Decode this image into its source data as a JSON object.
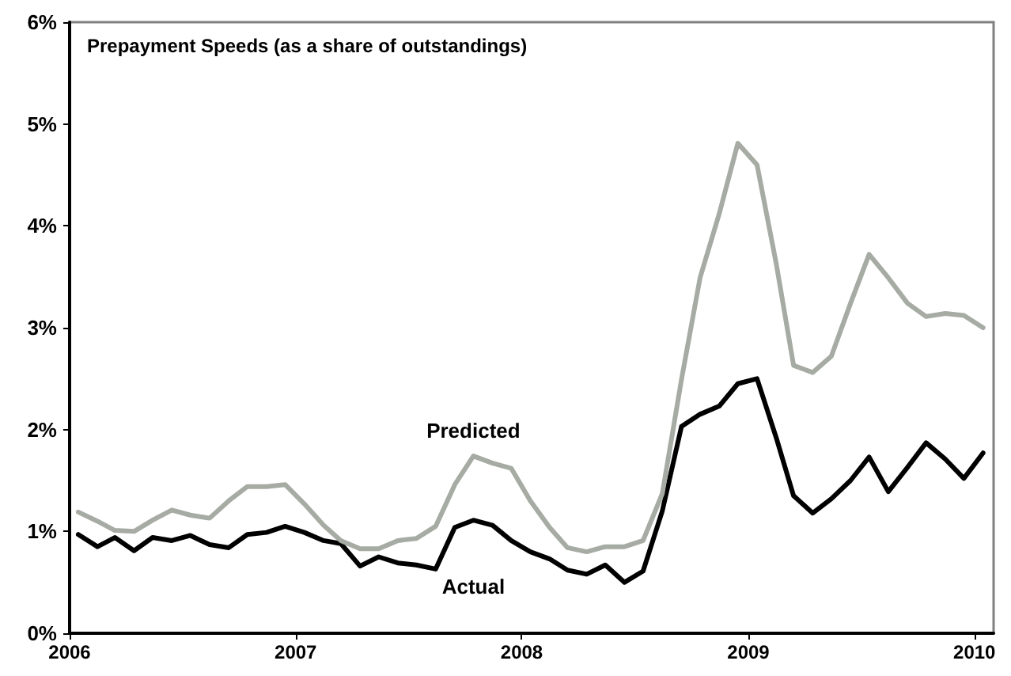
{
  "chart_data": {
    "type": "line",
    "title": "Prepayment Speeds (as a share of outstandings)",
    "x": [
      "2006-01-15",
      "2006-02-15",
      "2006-03-15",
      "2006-04-15",
      "2006-05-15",
      "2006-06-15",
      "2006-07-15",
      "2006-08-15",
      "2006-09-15",
      "2006-10-15",
      "2006-11-15",
      "2006-12-15",
      "2007-01-15",
      "2007-02-15",
      "2007-03-15",
      "2007-04-15",
      "2007-05-15",
      "2007-06-15",
      "2007-07-15",
      "2007-08-15",
      "2007-09-15",
      "2007-10-15",
      "2007-11-15",
      "2007-12-15",
      "2008-01-15",
      "2008-02-15",
      "2008-03-15",
      "2008-04-15",
      "2008-05-15",
      "2008-06-15",
      "2008-07-15",
      "2008-08-15",
      "2008-09-15",
      "2008-10-15",
      "2008-11-15",
      "2008-12-15",
      "2009-01-15",
      "2009-02-15",
      "2009-03-15",
      "2009-04-15",
      "2009-05-15",
      "2009-06-15",
      "2009-07-15",
      "2009-08-15",
      "2009-09-15",
      "2009-10-15",
      "2009-11-15",
      "2009-12-15",
      "2010-01-15"
    ],
    "series": [
      {
        "name": "Predicted",
        "color": "#a6aba3",
        "values": [
          1.19,
          1.1,
          1.01,
          1.0,
          1.11,
          1.21,
          1.16,
          1.13,
          1.3,
          1.44,
          1.44,
          1.46,
          1.27,
          1.06,
          0.91,
          0.83,
          0.83,
          0.91,
          0.93,
          1.05,
          1.46,
          1.74,
          1.67,
          1.62,
          1.3,
          1.04,
          0.84,
          0.8,
          0.85,
          0.85,
          0.91,
          1.37,
          2.49,
          3.49,
          4.12,
          4.81,
          4.6,
          3.63,
          2.63,
          2.56,
          2.72,
          3.24,
          3.72,
          3.49,
          3.24,
          3.11,
          3.14,
          3.12,
          3.0
        ]
      },
      {
        "name": "Actual",
        "color": "#000000",
        "values": [
          0.97,
          0.85,
          0.94,
          0.81,
          0.94,
          0.91,
          0.96,
          0.87,
          0.84,
          0.97,
          0.99,
          1.05,
          0.99,
          0.91,
          0.88,
          0.66,
          0.75,
          0.69,
          0.67,
          0.63,
          1.04,
          1.11,
          1.06,
          0.91,
          0.8,
          0.73,
          0.62,
          0.58,
          0.67,
          0.5,
          0.61,
          1.2,
          2.03,
          2.15,
          2.23,
          2.45,
          2.5,
          1.92,
          1.35,
          1.18,
          1.32,
          1.5,
          1.73,
          1.39,
          1.63,
          1.87,
          1.71,
          1.52,
          1.77
        ]
      }
    ],
    "xlim": [
      "2006-01-01",
      "2010-02-01"
    ],
    "xticks": [
      {
        "value": "2006-01-01",
        "label": "2006"
      },
      {
        "value": "2007-01-01",
        "label": "2007"
      },
      {
        "value": "2008-01-01",
        "label": "2008"
      },
      {
        "value": "2009-01-01",
        "label": "2009"
      },
      {
        "value": "2010-01-01",
        "label": "2010"
      }
    ],
    "ylim": [
      0,
      6
    ],
    "yticks": [
      {
        "value": 0,
        "label": "0%"
      },
      {
        "value": 1,
        "label": "1%"
      },
      {
        "value": 2,
        "label": "2%"
      },
      {
        "value": 3,
        "label": "3%"
      },
      {
        "value": 4,
        "label": "4%"
      },
      {
        "value": 5,
        "label": "5%"
      },
      {
        "value": 6,
        "label": "6%"
      }
    ],
    "grid": false,
    "legend": false,
    "marker": "none",
    "line_style": "solid"
  }
}
